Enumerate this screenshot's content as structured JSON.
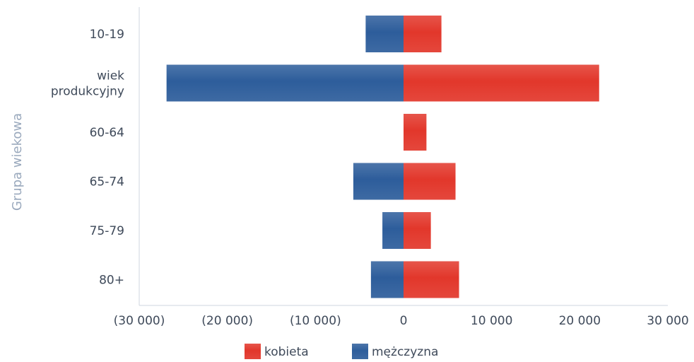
{
  "chart_data": {
    "type": "bar",
    "orientation": "horizontal",
    "stacking": "diverging",
    "ylabel": "Grupa wiekowa",
    "categories": [
      [
        "10-19"
      ],
      [
        "wiek",
        "produkcyjny"
      ],
      [
        "60-64"
      ],
      [
        "65-74"
      ],
      [
        "75-79"
      ],
      [
        "80+"
      ]
    ],
    "series": [
      {
        "name": "kobieta",
        "color": "#e2372b",
        "values": [
          4300,
          22200,
          2600,
          5900,
          3100,
          6300
        ]
      },
      {
        "name": "mężczyzna",
        "color": "#2d5d9b",
        "values": [
          -4300,
          -26900,
          0,
          -5700,
          -2400,
          -3700
        ]
      }
    ],
    "xlim": [
      -30000,
      30000
    ],
    "xticks": [
      -30000,
      -20000,
      -10000,
      0,
      10000,
      20000,
      30000
    ],
    "xtick_labels": [
      "(30 000)",
      "(20 000)",
      "(10 000)",
      "0",
      "10 000",
      "20 000",
      "30 000"
    ],
    "legend_position": "bottom",
    "grid": false
  }
}
